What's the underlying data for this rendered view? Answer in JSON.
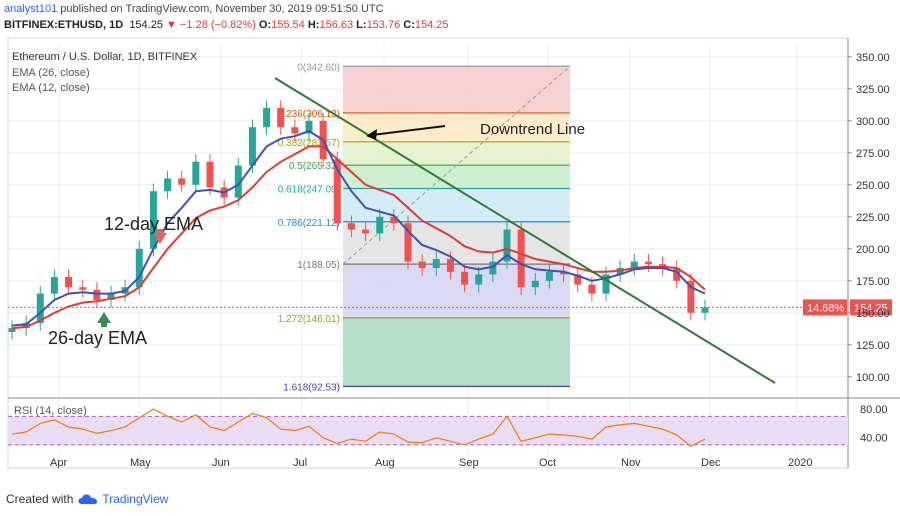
{
  "header": {
    "author": "analyst101",
    "published_text": "published on TradingView.com, November 30, 2019 09:51:50 UTC",
    "symbol": "BITFINEX:ETHUSD, 1D",
    "last": "154.25",
    "change_arrow": "▼",
    "change": "−1.28 (−0.82%)",
    "open_label": "O:",
    "open": "155.54",
    "high_label": "H:",
    "high": "156.63",
    "low_label": "L:",
    "low": "153.76",
    "close_label": "C:",
    "close": "154.25"
  },
  "legend": {
    "title": "Ethereum / U.S. Dollar, 1D, BITFINEX",
    "ema26": "EMA (26, close)",
    "ema12": "EMA (12, close)"
  },
  "annotations": {
    "downtrend": "Downtrend Line",
    "ema12": "12-day EMA",
    "ema26": "26-day EMA"
  },
  "price_tags": {
    "percent": "14.68%",
    "price": "154.25"
  },
  "rsi": {
    "label": "RSI (14, close)"
  },
  "footer": {
    "created_with": "Created with",
    "brand": "TradingView"
  },
  "colors": {
    "up": "#26a69a",
    "down": "#ef5350",
    "ema26": "#e53935",
    "ema12": "#3f51b5",
    "trendline": "#2e7d32",
    "rsi": "#f57c00",
    "rsi_band": "#e9dcf7",
    "brand": "#2962ff"
  },
  "chart_data": [
    {
      "type": "candlestick",
      "title": "Ethereum / U.S. Dollar, 1D, BITFINEX",
      "y_axis": {
        "range": [
          85,
          360
        ],
        "ticks": [
          100,
          125,
          150,
          175,
          200,
          225,
          250,
          275,
          300,
          325,
          350
        ]
      },
      "x_axis": {
        "labels": [
          "Apr",
          "May",
          "Jun",
          "Jul",
          "Aug",
          "Sep",
          "Oct",
          "Nov",
          "Dec",
          "2020"
        ]
      },
      "grid": true,
      "series": [
        {
          "name": "ETHUSD daily",
          "x": [
            "Mar 28",
            "Apr 1",
            "Apr 5",
            "Apr 10",
            "Apr 15",
            "Apr 20",
            "Apr 25",
            "May 1",
            "May 5",
            "May 10",
            "May 15",
            "May 20",
            "May 25",
            "Jun 1",
            "Jun 5",
            "Jun 10",
            "Jun 15",
            "Jun 20",
            "Jun 26",
            "Jul 1",
            "Jul 5",
            "Jul 10",
            "Jul 15",
            "Jul 20",
            "Jul 25",
            "Aug 1",
            "Aug 6",
            "Aug 10",
            "Aug 15",
            "Aug 20",
            "Aug 25",
            "Sep 1",
            "Sep 5",
            "Sep 10",
            "Sep 15",
            "Sep 19",
            "Sep 25",
            "Oct 1",
            "Oct 5",
            "Oct 10",
            "Oct 15",
            "Oct 20",
            "Oct 26",
            "Nov 1",
            "Nov 5",
            "Nov 10",
            "Nov 15",
            "Nov 20",
            "Nov 25",
            "Nov 30"
          ],
          "close": [
            138,
            142,
            165,
            178,
            170,
            168,
            160,
            165,
            170,
            200,
            245,
            255,
            250,
            268,
            248,
            240,
            265,
            295,
            310,
            295,
            290,
            300,
            270,
            220,
            215,
            212,
            225,
            220,
            190,
            185,
            192,
            182,
            172,
            180,
            190,
            215,
            170,
            175,
            182,
            180,
            172,
            165,
            180,
            185,
            190,
            188,
            185,
            175,
            150,
            154.25
          ]
        },
        {
          "name": "EMA (12, close)",
          "values": [
            140,
            141,
            150,
            160,
            165,
            166,
            165,
            165,
            167,
            178,
            200,
            220,
            232,
            245,
            246,
            244,
            250,
            265,
            280,
            286,
            288,
            292,
            285,
            262,
            245,
            232,
            229,
            226,
            214,
            203,
            199,
            194,
            186,
            184,
            186,
            195,
            188,
            184,
            183,
            182,
            179,
            175,
            177,
            180,
            184,
            185,
            185,
            182,
            170,
            165
          ]
        },
        {
          "name": "EMA (26, close)",
          "values": [
            138,
            139,
            144,
            150,
            155,
            158,
            159,
            161,
            163,
            170,
            185,
            200,
            212,
            224,
            230,
            233,
            238,
            248,
            260,
            268,
            274,
            280,
            280,
            270,
            260,
            250,
            246,
            242,
            232,
            222,
            216,
            210,
            202,
            198,
            197,
            200,
            196,
            192,
            190,
            188,
            185,
            182,
            182,
            183,
            185,
            186,
            186,
            185,
            178,
            168
          ]
        }
      ]
    },
    {
      "type": "fibonacci",
      "levels": [
        {
          "ratio": "0",
          "price": 342.6,
          "label": "0(342.60)"
        },
        {
          "ratio": "0.236",
          "price": 306.13,
          "label": "0.236(306.13)"
        },
        {
          "ratio": "0.382",
          "price": 283.57,
          "label": "0.382(283.57)"
        },
        {
          "ratio": "0.5",
          "price": 265.32,
          "label": "0.5(265.32)"
        },
        {
          "ratio": "0.618",
          "price": 247.09,
          "label": "0.618(247.09)"
        },
        {
          "ratio": "0.786",
          "price": 221.12,
          "label": "0.786(221.12)"
        },
        {
          "ratio": "1",
          "price": 188.05,
          "label": "1(188.05)"
        },
        {
          "ratio": "1.272",
          "price": 146.01,
          "label": "1.272(146.01)"
        },
        {
          "ratio": "1.618",
          "price": 92.53,
          "label": "1.618(92.53)"
        }
      ]
    },
    {
      "type": "line",
      "title": "RSI (14, close)",
      "y_axis": {
        "range": [
          20,
          90
        ],
        "ticks": [
          40,
          80
        ]
      },
      "band": [
        30,
        70
      ],
      "values": [
        45,
        48,
        60,
        65,
        55,
        52,
        46,
        50,
        55,
        68,
        80,
        70,
        62,
        72,
        55,
        50,
        62,
        74,
        68,
        52,
        50,
        56,
        40,
        32,
        38,
        35,
        48,
        45,
        34,
        33,
        40,
        35,
        30,
        38,
        45,
        70,
        35,
        40,
        45,
        44,
        42,
        38,
        55,
        58,
        60,
        56,
        52,
        44,
        28,
        38
      ]
    }
  ]
}
